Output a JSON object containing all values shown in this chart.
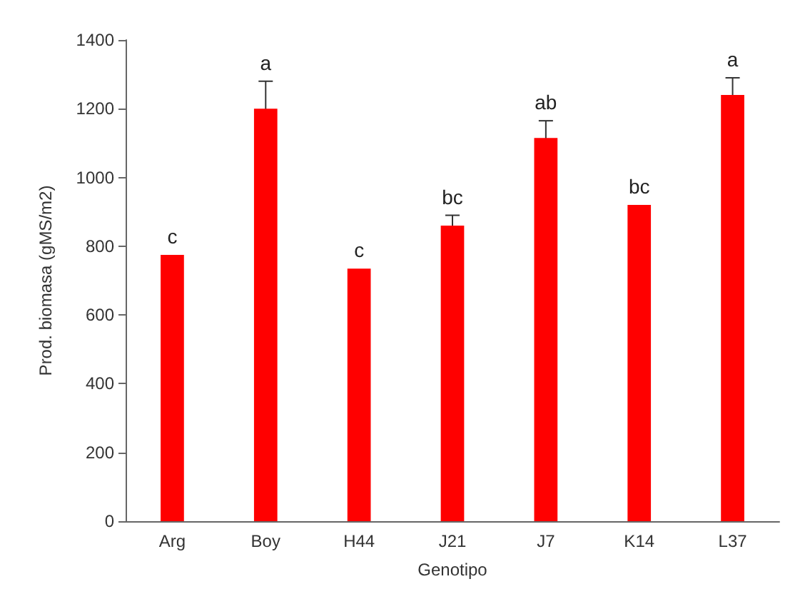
{
  "chart_data": {
    "type": "bar",
    "xlabel": "Genotipo",
    "ylabel": "Prod. biomasa (gMS/m2)",
    "categories": [
      "Arg",
      "Boy",
      "H44",
      "J21",
      "J7",
      "K14",
      "L37"
    ],
    "values": [
      775,
      1200,
      735,
      860,
      1115,
      920,
      1240
    ],
    "errors": [
      null,
      80,
      null,
      30,
      50,
      null,
      50
    ],
    "color": "#ff0000",
    "ylim": [
      0,
      1400
    ],
    "yticks": [
      0,
      200,
      400,
      600,
      800,
      1000,
      1200,
      1400
    ],
    "grid": false,
    "annotations": [
      {
        "text": "c",
        "x": "Arg",
        "y": 775
      },
      {
        "text": "a",
        "x": "Boy",
        "y": 1200
      },
      {
        "text": "c",
        "x": "H44",
        "y": 735
      },
      {
        "text": "bc",
        "x": "J21",
        "y": 860
      },
      {
        "text": "ab",
        "x": "J7",
        "y": 1115
      },
      {
        "text": "bc",
        "x": "K14",
        "y": 920
      },
      {
        "text": "a",
        "x": "L37",
        "y": 1240
      }
    ]
  }
}
